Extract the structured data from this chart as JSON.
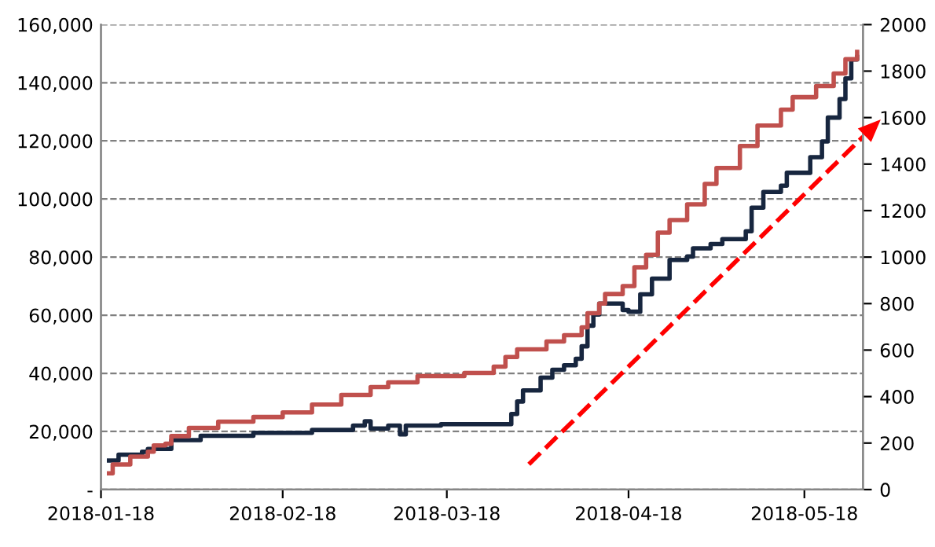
{
  "chart_data": {
    "type": "step",
    "xlim": [
      "2018-01-18",
      "2018-05-28"
    ],
    "xticks": [
      {
        "value": "2018-01-18",
        "label": "2018-01-18"
      },
      {
        "value": "2018-02-18",
        "label": "2018-02-18"
      },
      {
        "value": "2018-03-18",
        "label": "2018-03-18"
      },
      {
        "value": "2018-04-18",
        "label": "2018-04-18"
      },
      {
        "value": "2018-05-18",
        "label": "2018-05-18"
      }
    ],
    "ylim": [
      0,
      160000
    ],
    "yticks": [
      {
        "value": 0,
        "label": "-"
      },
      {
        "value": 20000,
        "label": "20,000"
      },
      {
        "value": 40000,
        "label": "40,000"
      },
      {
        "value": 60000,
        "label": "60,000"
      },
      {
        "value": 80000,
        "label": "80,000"
      },
      {
        "value": 100000,
        "label": "100,000"
      },
      {
        "value": 120000,
        "label": "120,000"
      },
      {
        "value": 140000,
        "label": "140,000"
      },
      {
        "value": 160000,
        "label": "160,000"
      }
    ],
    "y2lim": [
      0,
      2000
    ],
    "y2ticks": [
      0,
      200,
      400,
      600,
      800,
      1000,
      1200,
      1400,
      1600,
      1800,
      2000
    ],
    "grid": "y",
    "line_style": "solid",
    "marker": "none",
    "legend": false,
    "series": [
      {
        "color": "#17263f",
        "axis": "y",
        "x": [
          "2018-01-19",
          "2018-01-21",
          "2018-01-25",
          "2018-01-26",
          "2018-01-30",
          "2018-02-04",
          "2018-02-13",
          "2018-02-23",
          "2018-03-02",
          "2018-03-04",
          "2018-03-05",
          "2018-03-08",
          "2018-03-10",
          "2018-03-11",
          "2018-03-17",
          "2018-03-28",
          "2018-03-29",
          "2018-03-30",
          "2018-03-31",
          "2018-04-03",
          "2018-04-05",
          "2018-04-07",
          "2018-04-09",
          "2018-04-10",
          "2018-04-11",
          "2018-04-12",
          "2018-04-13",
          "2018-04-17",
          "2018-04-18",
          "2018-04-20",
          "2018-04-22",
          "2018-04-25",
          "2018-04-28",
          "2018-04-29",
          "2018-05-02",
          "2018-05-04",
          "2018-05-08",
          "2018-05-09",
          "2018-05-11",
          "2018-05-14",
          "2018-05-15",
          "2018-05-19",
          "2018-05-21",
          "2018-05-22",
          "2018-05-24",
          "2018-05-25",
          "2018-05-26",
          "2018-05-27"
        ],
        "values": [
          10000,
          12000,
          13000,
          14000,
          17000,
          18500,
          19500,
          20500,
          22000,
          23500,
          21000,
          22000,
          19000,
          22000,
          22500,
          22500,
          26000,
          30300,
          34100,
          38500,
          41200,
          42800,
          45000,
          49300,
          56400,
          60200,
          64000,
          61800,
          61200,
          67200,
          72600,
          79000,
          80200,
          83000,
          84500,
          86200,
          88900,
          97000,
          102400,
          104600,
          109000,
          114400,
          119800,
          128000,
          134400,
          141500,
          148000,
          149600
        ]
      },
      {
        "color": "#c0504d",
        "axis": "y2",
        "x": [
          "2018-01-19",
          "2018-01-20",
          "2018-01-23",
          "2018-01-26",
          "2018-01-27",
          "2018-01-29",
          "2018-01-30",
          "2018-02-02",
          "2018-02-07",
          "2018-02-13",
          "2018-02-18",
          "2018-02-23",
          "2018-02-28",
          "2018-03-05",
          "2018-03-08",
          "2018-03-13",
          "2018-03-21",
          "2018-03-26",
          "2018-03-28",
          "2018-03-30",
          "2018-04-04",
          "2018-04-07",
          "2018-04-10",
          "2018-04-11",
          "2018-04-13",
          "2018-04-14",
          "2018-04-17",
          "2018-04-19",
          "2018-04-21",
          "2018-04-23",
          "2018-04-25",
          "2018-04-28",
          "2018-05-01",
          "2018-05-03",
          "2018-05-07",
          "2018-05-10",
          "2018-05-14",
          "2018-05-16",
          "2018-05-20",
          "2018-05-23",
          "2018-05-25",
          "2018-05-27"
        ],
        "values": [
          70,
          108,
          142,
          163,
          190,
          197,
          230,
          265,
          292,
          312,
          332,
          366,
          407,
          441,
          461,
          488,
          502,
          529,
          570,
          603,
          637,
          664,
          698,
          759,
          800,
          841,
          875,
          956,
          1010,
          1105,
          1159,
          1227,
          1315,
          1383,
          1478,
          1566,
          1634,
          1688,
          1736,
          1790,
          1851,
          1892
        ]
      },
      {
        "type": "line",
        "color": "#ff0000",
        "axis": "y",
        "line_style": "dashed",
        "x": [
          "2018-04-01",
          "2018-05-28"
        ],
        "values": [
          8700,
          121400
        ]
      }
    ]
  }
}
